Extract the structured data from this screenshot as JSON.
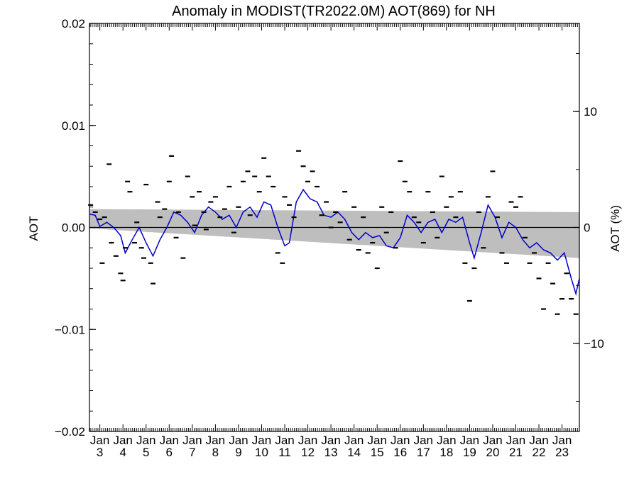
{
  "chart_data": {
    "type": "line",
    "title": "Anomaly in MODIST(TR2022.0M) AOT(869) for NH",
    "ylabel": "AOT",
    "y2label": "AOT (%)",
    "ylim": [
      -0.02,
      0.02
    ],
    "y2lim": [
      -17.6,
      17.6
    ],
    "xlim": [
      2002.55,
      2023.75
    ],
    "yticks": [
      0.02,
      0.01,
      0.0,
      -0.01,
      -0.02
    ],
    "ytick_labels": [
      "0.02",
      "0.01",
      "0.00",
      "−0.01",
      "−0.02"
    ],
    "y2ticks": [
      10,
      0,
      -10
    ],
    "y2tick_labels": [
      "10",
      "0",
      "−10"
    ],
    "x_month_label": "Jan",
    "x_years": [
      "3",
      "4",
      "5",
      "6",
      "7",
      "8",
      "9",
      "10",
      "11",
      "12",
      "13",
      "14",
      "15",
      "16",
      "17",
      "18",
      "19",
      "20",
      "21",
      "22",
      "23"
    ],
    "colors": {
      "line": "#0000cc",
      "band": "#bebebe",
      "points": "#000000",
      "zero": "#000000"
    },
    "trend_band": {
      "x": [
        2002.55,
        2023.75
      ],
      "upper": [
        0.0018,
        0.0015
      ],
      "lower": [
        -0.0001,
        -0.003
      ]
    },
    "smoothed_line": {
      "name": "",
      "x": [
        2002.55,
        2002.8,
        2003.0,
        2003.3,
        2003.6,
        2003.9,
        2004.1,
        2004.4,
        2004.7,
        2005.0,
        2005.3,
        2005.6,
        2005.9,
        2006.2,
        2006.5,
        2006.8,
        2007.1,
        2007.4,
        2007.7,
        2008.0,
        2008.3,
        2008.6,
        2008.9,
        2009.2,
        2009.5,
        2009.8,
        2010.1,
        2010.4,
        2010.7,
        2011.0,
        2011.2,
        2011.5,
        2011.8,
        2012.1,
        2012.4,
        2012.7,
        2013.0,
        2013.3,
        2013.6,
        2013.9,
        2014.2,
        2014.5,
        2014.8,
        2015.1,
        2015.4,
        2015.7,
        2016.0,
        2016.3,
        2016.6,
        2016.9,
        2017.2,
        2017.5,
        2017.8,
        2018.1,
        2018.4,
        2018.7,
        2019.0,
        2019.2,
        2019.5,
        2019.8,
        2020.1,
        2020.4,
        2020.7,
        2021.0,
        2021.3,
        2021.6,
        2021.9,
        2022.2,
        2022.5,
        2022.8,
        2023.1,
        2023.4,
        2023.6,
        2023.75
      ],
      "y": [
        0.0013,
        0.0012,
        0.0001,
        0.0005,
        0.0,
        -0.0008,
        -0.0025,
        -0.0012,
        0.0,
        -0.0015,
        -0.0028,
        -0.0012,
        0.0,
        0.0015,
        0.0012,
        0.0005,
        -0.0005,
        0.0012,
        0.002,
        0.0015,
        0.0008,
        0.0012,
        0.0,
        0.0015,
        0.002,
        0.001,
        0.0025,
        0.0022,
        0.0,
        -0.0018,
        -0.0015,
        0.0025,
        0.0037,
        0.0028,
        0.0025,
        0.0012,
        0.001,
        0.0015,
        0.0008,
        -0.0005,
        -0.0012,
        -0.0005,
        -0.001,
        -0.0008,
        -0.0018,
        -0.002,
        -0.001,
        0.0012,
        0.0005,
        -0.0005,
        0.0005,
        0.0008,
        -0.0005,
        0.0008,
        0.0005,
        0.001,
        -0.0015,
        -0.003,
        -0.0005,
        0.0022,
        0.001,
        -0.001,
        0.0005,
        0.0,
        -0.0012,
        -0.002,
        -0.0015,
        -0.0022,
        -0.0025,
        -0.0032,
        -0.0025,
        -0.005,
        -0.0065,
        -0.005
      ]
    },
    "monthly_points": {
      "x": [
        2002.6,
        2002.8,
        2003.0,
        2003.1,
        2003.2,
        2003.4,
        2003.5,
        2003.7,
        2003.9,
        2004.0,
        2004.1,
        2004.2,
        2004.3,
        2004.5,
        2004.6,
        2004.8,
        2004.9,
        2005.0,
        2005.2,
        2005.3,
        2005.5,
        2005.6,
        2005.8,
        2006.0,
        2006.1,
        2006.3,
        2006.4,
        2006.6,
        2006.8,
        2007.0,
        2007.1,
        2007.3,
        2007.5,
        2007.6,
        2007.8,
        2008.0,
        2008.2,
        2008.4,
        2008.6,
        2008.8,
        2009.0,
        2009.2,
        2009.4,
        2009.5,
        2009.7,
        2009.9,
        2010.1,
        2010.3,
        2010.5,
        2010.7,
        2010.9,
        2011.0,
        2011.2,
        2011.4,
        2011.6,
        2011.8,
        2012.0,
        2012.2,
        2012.4,
        2012.6,
        2012.8,
        2013.0,
        2013.2,
        2013.4,
        2013.6,
        2013.8,
        2014.0,
        2014.2,
        2014.4,
        2014.6,
        2014.8,
        2015.0,
        2015.2,
        2015.4,
        2015.6,
        2015.8,
        2016.0,
        2016.2,
        2016.4,
        2016.6,
        2016.8,
        2017.0,
        2017.2,
        2017.4,
        2017.6,
        2017.8,
        2018.0,
        2018.2,
        2018.4,
        2018.6,
        2018.8,
        2019.0,
        2019.2,
        2019.4,
        2019.6,
        2019.8,
        2020.0,
        2020.2,
        2020.4,
        2020.6,
        2020.8,
        2021.0,
        2021.2,
        2021.4,
        2021.6,
        2021.8,
        2022.0,
        2022.2,
        2022.4,
        2022.6,
        2022.8,
        2023.0,
        2023.2,
        2023.4,
        2023.6
      ],
      "y": [
        0.0022,
        0.0015,
        0.0008,
        -0.0035,
        0.001,
        0.0062,
        -0.0015,
        -0.0028,
        -0.0045,
        -0.0052,
        -0.002,
        0.0045,
        0.0035,
        -0.0015,
        0.0005,
        -0.002,
        -0.003,
        0.0042,
        -0.0035,
        -0.0055,
        0.0025,
        0.001,
        0.0018,
        0.0045,
        0.007,
        -0.001,
        0.0015,
        -0.003,
        0.005,
        0.003,
        0.0002,
        0.0035,
        0.0015,
        -0.0002,
        0.0025,
        0.003,
        0.001,
        0.0018,
        0.004,
        -0.0005,
        0.002,
        0.0045,
        0.0055,
        0.0012,
        0.005,
        0.0035,
        0.0068,
        0.005,
        0.004,
        -0.0025,
        -0.0035,
        0.003,
        0.0022,
        0.001,
        0.0075,
        0.006,
        0.0045,
        0.0055,
        0.004,
        0.0012,
        0.0025,
        0.0,
        0.0015,
        0.0005,
        0.0035,
        -0.0012,
        0.002,
        -0.0022,
        0.001,
        -0.0025,
        -0.0015,
        -0.004,
        0.002,
        -0.0005,
        0.0015,
        -0.002,
        0.0065,
        0.0045,
        0.0035,
        0.001,
        0.0005,
        -0.0015,
        0.0035,
        0.0015,
        -0.001,
        0.005,
        0.002,
        0.003,
        0.001,
        0.0035,
        -0.0035,
        -0.0072,
        -0.004,
        0.0015,
        -0.002,
        0.003,
        0.0055,
        0.001,
        -0.0025,
        -0.0035,
        0.0025,
        0.002,
        0.003,
        -0.001,
        -0.0035,
        -0.0025,
        -0.005,
        -0.008,
        -0.0035,
        -0.0055,
        -0.0085,
        -0.007,
        -0.0045,
        -0.007,
        -0.0085
      ]
    }
  }
}
